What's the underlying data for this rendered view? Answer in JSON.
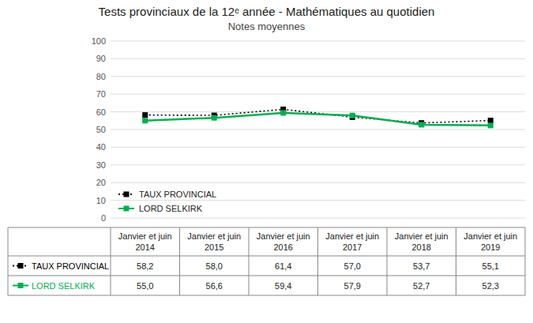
{
  "chart_data": {
    "type": "line",
    "title": "Tests provinciaux de la 12ᵉ année - Mathématiques au quotidien",
    "subtitle": "Notes moyennes",
    "categories": [
      "Janvier et juin\n2014",
      "Janvier et juin\n2015",
      "Janvier et juin\n2016",
      "Janvier et juin\n2017",
      "Janvier et juin\n2018",
      "Janvier et juin\n2019"
    ],
    "series": [
      {
        "name": "TAUX PROVINCIAL",
        "color": "#000000",
        "line_style": "dotted",
        "marker": "square",
        "values": [
          58.2,
          58.0,
          61.4,
          57.0,
          53.7,
          55.1
        ],
        "value_labels": [
          "58,2",
          "58,0",
          "61,4",
          "57,0",
          "53,7",
          "55,1"
        ]
      },
      {
        "name": "LORD SELKIRK",
        "color": "#00b050",
        "line_style": "solid",
        "marker": "square",
        "values": [
          55.0,
          56.6,
          59.4,
          57.9,
          52.7,
          52.3
        ],
        "value_labels": [
          "55,0",
          "56,6",
          "59,4",
          "57,9",
          "52,7",
          "52,3"
        ]
      }
    ],
    "ylim": [
      0,
      100
    ],
    "yticks": [
      0,
      10,
      20,
      30,
      40,
      50,
      60,
      70,
      80,
      90,
      100
    ],
    "grid": true,
    "legend": "lower left"
  }
}
